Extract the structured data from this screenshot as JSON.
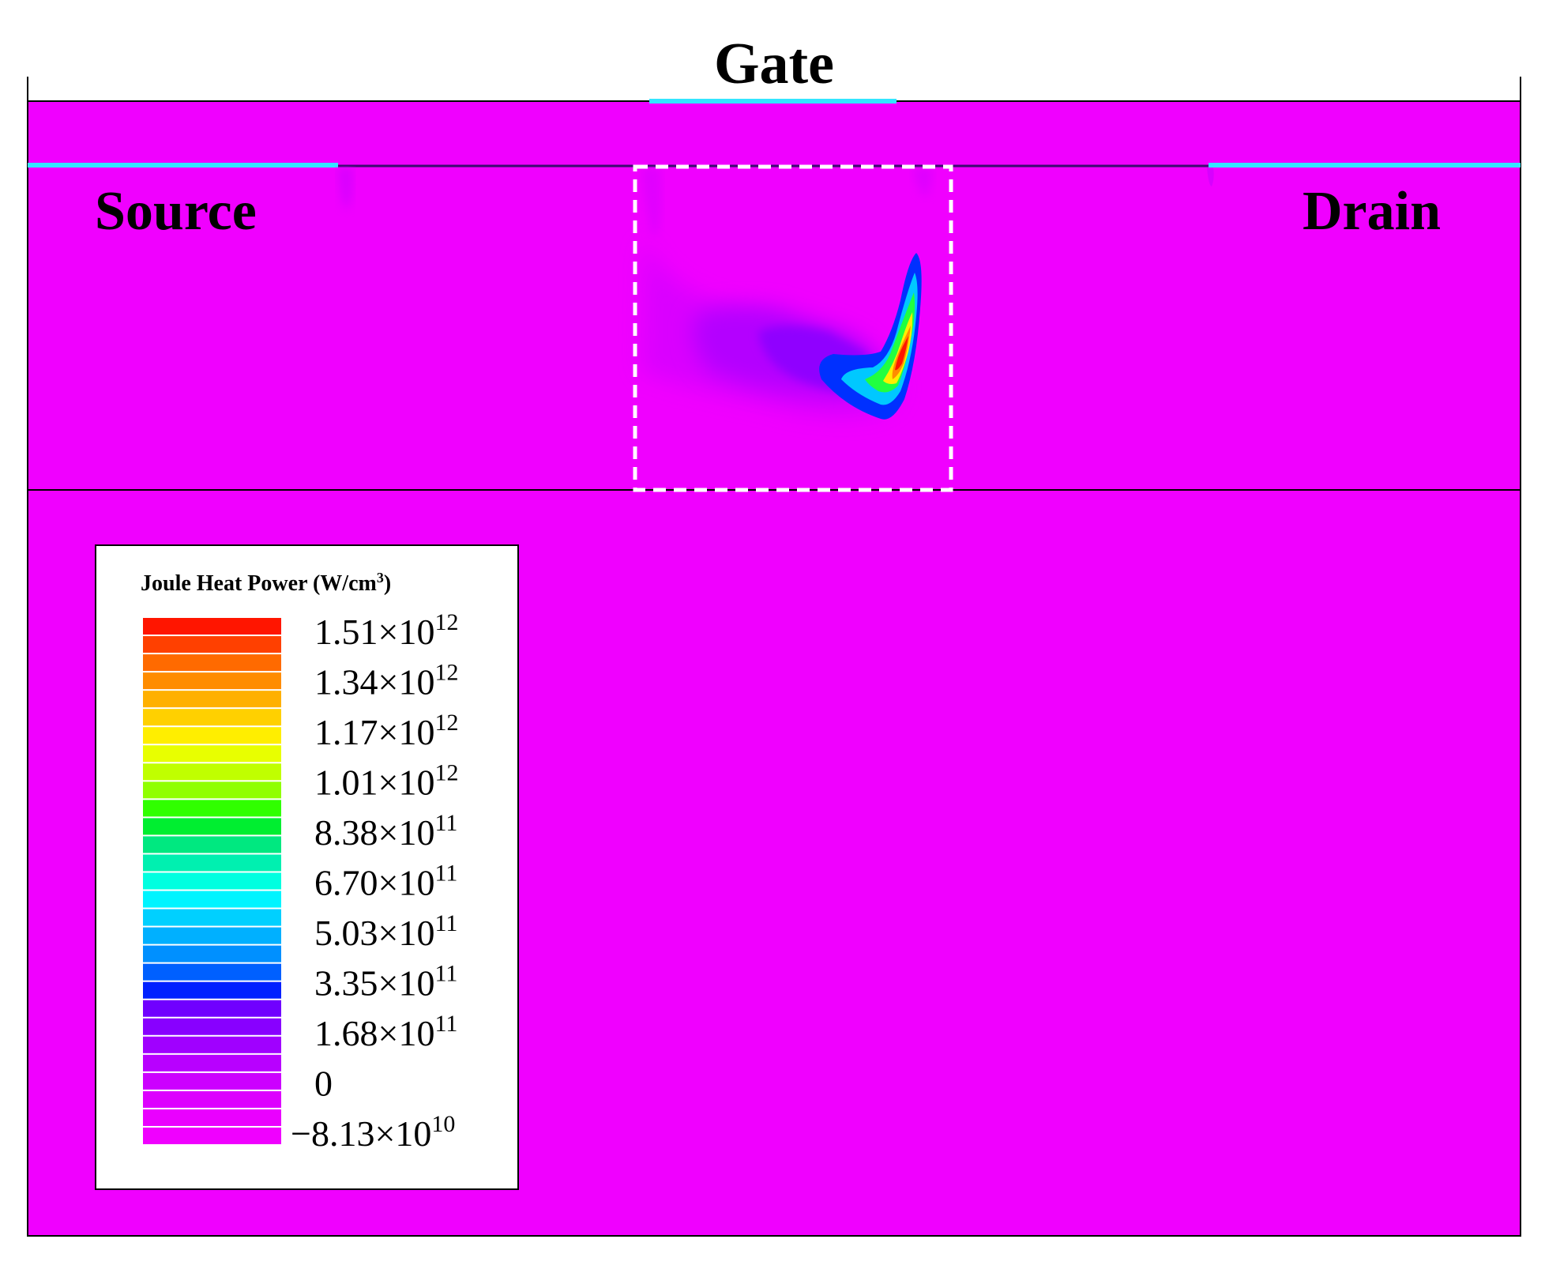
{
  "labels": {
    "gate": "Gate",
    "source": "Source",
    "drain": "Drain"
  },
  "colors": {
    "background_field": "#f000ff",
    "contact": "#33e6ff",
    "frame": "#000000",
    "highlight_box": "#ffffff"
  },
  "legend": {
    "title_main": "Joule Heat Power (W/cm",
    "title_sup": "3",
    "title_end": ")",
    "ticks": [
      {
        "mantissa": "1.51",
        "times": "×",
        "base": "10",
        "exp": "12"
      },
      {
        "mantissa": "1.34",
        "times": "×",
        "base": "10",
        "exp": "12"
      },
      {
        "mantissa": "1.17",
        "times": "×",
        "base": "10",
        "exp": "12"
      },
      {
        "mantissa": "1.01",
        "times": "×",
        "base": "10",
        "exp": "12"
      },
      {
        "mantissa": "8.38",
        "times": "×",
        "base": "10",
        "exp": "11"
      },
      {
        "mantissa": "6.70",
        "times": "×",
        "base": "10",
        "exp": "11"
      },
      {
        "mantissa": "5.03",
        "times": "×",
        "base": "10",
        "exp": "11"
      },
      {
        "mantissa": "3.35",
        "times": "×",
        "base": "10",
        "exp": "11"
      },
      {
        "mantissa": "1.68",
        "times": "×",
        "base": "10",
        "exp": "11"
      },
      {
        "mantissa": "0",
        "times": "",
        "base": "",
        "exp": ""
      },
      {
        "mantissa": "−8.13",
        "times": "×",
        "base": "10",
        "exp": "10"
      }
    ],
    "color_levels": [
      "#ff1500",
      "#ff4000",
      "#ff6a00",
      "#ff8c00",
      "#ffb000",
      "#ffd000",
      "#ffee00",
      "#e8ff00",
      "#c0ff00",
      "#90ff00",
      "#30ff00",
      "#00ee30",
      "#00e880",
      "#00f0b0",
      "#00ffe0",
      "#00f4ff",
      "#00d0ff",
      "#00b0ff",
      "#0090ff",
      "#0060ff",
      "#0020ff",
      "#7000ff",
      "#8800ff",
      "#a000ff",
      "#b800ff",
      "#cc00ff",
      "#dd00ff",
      "#ea00ff",
      "#f000ff"
    ]
  }
}
